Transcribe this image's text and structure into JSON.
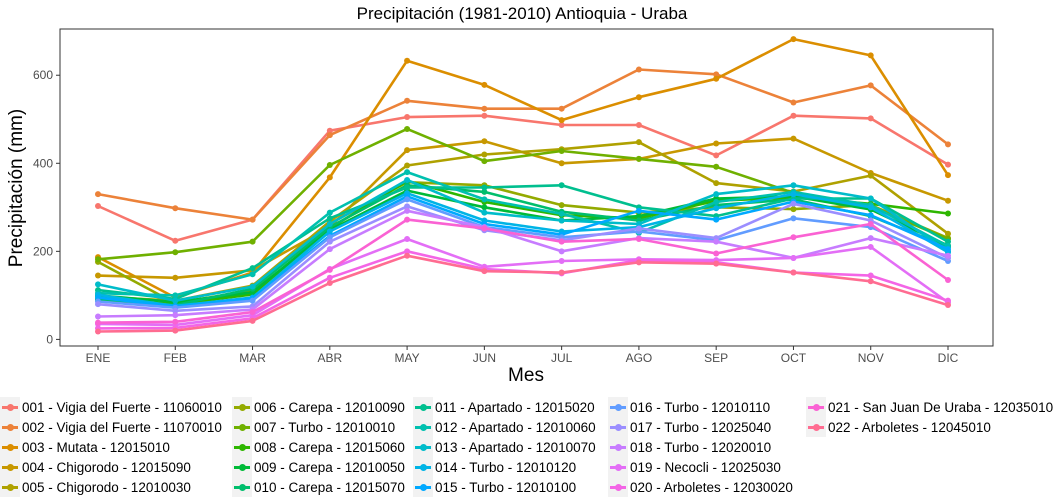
{
  "chart_data": {
    "type": "line",
    "title": "Precipitación (1981-2010)  Antioquia - Uraba",
    "xlabel": "Mes",
    "ylabel": "Precipitación (mm)",
    "categories": [
      "ENE",
      "FEB",
      "MAR",
      "ABR",
      "MAY",
      "JUN",
      "JUL",
      "AGO",
      "SEP",
      "OCT",
      "NOV",
      "DIC"
    ],
    "ylim": [
      -15,
      705
    ],
    "yticks": [
      0,
      200,
      400,
      600
    ],
    "yticklabels": [
      "0",
      "200",
      "400",
      "600"
    ],
    "grid": false,
    "legend_position": "bottom",
    "series": [
      {
        "name": "001 - Vigia del Fuerte - 11060010",
        "color": "#F8766D",
        "values": [
          303,
          224,
          272,
          474,
          505,
          508,
          487,
          487,
          418,
          508,
          502,
          397
        ]
      },
      {
        "name": "002 - Vigia del Fuerte - 11070010",
        "color": "#EC8239",
        "values": [
          330,
          298,
          272,
          464,
          542,
          524,
          524,
          613,
          602,
          538,
          577,
          443
        ]
      },
      {
        "name": "003 - Mutata - 12015010",
        "color": "#DB8E00",
        "values": [
          187,
          95,
          152,
          368,
          633,
          578,
          498,
          550,
          592,
          682,
          645,
          373
        ]
      },
      {
        "name": "004 - Chigorodo - 12015090",
        "color": "#C79800",
        "values": [
          145,
          140,
          157,
          255,
          430,
          450,
          400,
          410,
          445,
          456,
          378,
          315
        ]
      },
      {
        "name": "005 - Chigorodo - 12010030",
        "color": "#AFA100",
        "values": [
          97,
          88,
          122,
          268,
          395,
          420,
          432,
          448,
          355,
          336,
          372,
          240
        ]
      },
      {
        "name": "006 - Carepa - 12010090",
        "color": "#93AA00",
        "values": [
          176,
          82,
          112,
          263,
          357,
          350,
          305,
          288,
          300,
          296,
          305,
          230
        ]
      },
      {
        "name": "007 - Turbo - 12010010",
        "color": "#6FB000",
        "values": [
          182,
          198,
          222,
          396,
          478,
          405,
          428,
          410,
          392,
          333,
          302,
          228
        ]
      },
      {
        "name": "008 - Carepa - 12015060",
        "color": "#2EB600",
        "values": [
          93,
          80,
          102,
          252,
          360,
          312,
          282,
          275,
          315,
          322,
          308,
          286
        ]
      },
      {
        "name": "009 - Carepa - 12010050",
        "color": "#00BA38",
        "values": [
          100,
          85,
          107,
          248,
          338,
          300,
          270,
          280,
          320,
          325,
          295,
          213
        ]
      },
      {
        "name": "010 - Carepa - 12015070",
        "color": "#00BE6C",
        "values": [
          90,
          78,
          115,
          255,
          350,
          335,
          290,
          270,
          305,
          318,
          280,
          210
        ]
      },
      {
        "name": "011 - Apartado - 12015020",
        "color": "#00BF8F",
        "values": [
          112,
          92,
          162,
          275,
          345,
          345,
          350,
          300,
          280,
          320,
          320,
          222
        ]
      },
      {
        "name": "012 - Apartado - 12010060",
        "color": "#00C0AF",
        "values": [
          105,
          100,
          148,
          288,
          380,
          318,
          285,
          242,
          312,
          335,
          305,
          212
        ]
      },
      {
        "name": "013 - Apartado - 12010070",
        "color": "#00BCCA",
        "values": [
          125,
          88,
          120,
          262,
          362,
          288,
          270,
          262,
          330,
          350,
          320,
          200
        ]
      },
      {
        "name": "014 - Turbo - 12010120",
        "color": "#00B4E5",
        "values": [
          101,
          76,
          95,
          245,
          332,
          270,
          245,
          255,
          298,
          330,
          300,
          198
        ]
      },
      {
        "name": "015 - Turbo - 12010100",
        "color": "#00A9FF",
        "values": [
          95,
          75,
          93,
          235,
          325,
          262,
          238,
          292,
          272,
          313,
          282,
          205
        ]
      },
      {
        "name": "016 - Turbo - 12010110",
        "color": "#619CFF",
        "values": [
          86,
          72,
          88,
          232,
          318,
          255,
          232,
          245,
          225,
          275,
          255,
          178
        ]
      },
      {
        "name": "017 - Turbo - 12025040",
        "color": "#9B8EFF",
        "values": [
          80,
          65,
          75,
          222,
          302,
          248,
          225,
          252,
          230,
          308,
          270,
          185
        ]
      },
      {
        "name": "018 - Turbo - 12020010",
        "color": "#C77CFF",
        "values": [
          52,
          55,
          68,
          205,
          292,
          255,
          200,
          230,
          222,
          185,
          230,
          190
        ]
      },
      {
        "name": "019 - Necocli - 12025030",
        "color": "#E36EF6",
        "values": [
          35,
          33,
          55,
          160,
          228,
          165,
          178,
          182,
          180,
          185,
          210,
          84
        ]
      },
      {
        "name": "020 - Arboletes - 12030020",
        "color": "#F365E6",
        "values": [
          25,
          26,
          48,
          140,
          200,
          160,
          150,
          180,
          175,
          152,
          145,
          88
        ]
      },
      {
        "name": "021 - San Juan De Uraba - 12035010",
        "color": "#FA62D3",
        "values": [
          38,
          40,
          62,
          158,
          272,
          252,
          222,
          228,
          195,
          232,
          262,
          135
        ]
      },
      {
        "name": "022 - Arboletes - 12045010",
        "color": "#FF6C91",
        "values": [
          18,
          20,
          42,
          128,
          190,
          155,
          152,
          175,
          172,
          152,
          132,
          78
        ]
      }
    ]
  }
}
